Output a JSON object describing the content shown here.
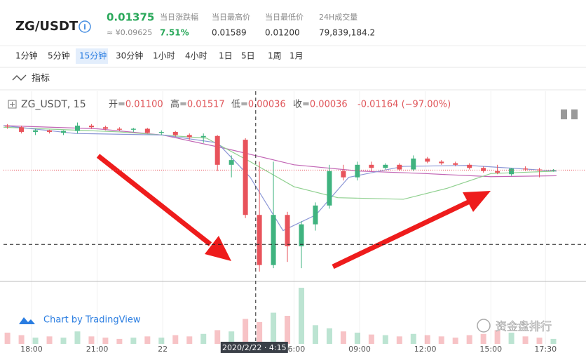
{
  "header": {
    "symbol": "ZG/USDT",
    "price": "0.01375",
    "price_cny": "≈ ¥0.09625",
    "stats": [
      {
        "label": "当日涨跌幅",
        "value": "7.51%"
      },
      {
        "label": "当日最高价",
        "value": "0.01589"
      },
      {
        "label": "当日最低价",
        "value": "0.01200"
      },
      {
        "label": "24H成交量",
        "value": "79,839,184.2"
      }
    ]
  },
  "intervals": [
    "1分钟",
    "5分钟",
    "15分钟",
    "30分钟",
    "1小时",
    "4小时",
    "1日",
    "5日",
    "1周",
    "1月"
  ],
  "active_interval": 2,
  "indicators_button": "指标",
  "legend": {
    "symbol": "ZG_USDT, 15",
    "items": [
      {
        "label": "开=",
        "value": "0.01100"
      },
      {
        "label": "高=",
        "value": "0.01517"
      },
      {
        "label": "低=",
        "value": "0.00036"
      },
      {
        "label": "收=",
        "value": "0.00036"
      }
    ],
    "change": "-0.01164 (−97.00%)"
  },
  "attribution": "Chart by TradingView",
  "watermark": "资金盘排行",
  "chart_data": {
    "type": "candlestick",
    "x": [
      -1.1,
      -0.46,
      0.18,
      0.82,
      1.46,
      2.1,
      2.74,
      3.38,
      4.02,
      4.66,
      5.3,
      5.94,
      6.58,
      7.22,
      7.86,
      8.5,
      9.14,
      9.78,
      10.42,
      11.06,
      11.7,
      12.34,
      12.98,
      13.62,
      14.26,
      14.9,
      15.54,
      16.18,
      16.82,
      17.46,
      18.1,
      18.74,
      19.38,
      20.02,
      20.66,
      21.3,
      21.94,
      22.58,
      23.22,
      23.86
    ],
    "open": [
      0.01585,
      0.0158,
      0.01565,
      0.0157,
      0.01562,
      0.01568,
      0.01585,
      0.0158,
      0.01575,
      0.01572,
      0.01575,
      0.01562,
      0.01565,
      0.01555,
      0.01548,
      0.01552,
      0.0146,
      0.0154,
      0.013,
      0.0114,
      0.013,
      0.012,
      0.0127,
      0.0133,
      0.0144,
      0.0142,
      0.0146,
      0.0145,
      0.0146,
      0.01445,
      0.0148,
      0.0147,
      0.01465,
      0.0146,
      0.0145,
      0.0144,
      0.0143,
      0.01448,
      0.01445,
      0.01442
    ],
    "high": [
      0.0159,
      0.01585,
      0.01575,
      0.01572,
      0.0157,
      0.01595,
      0.0159,
      0.01585,
      0.0158,
      0.01578,
      0.01578,
      0.0157,
      0.01568,
      0.0156,
      0.0156,
      0.01555,
      0.0149,
      0.01545,
      0.0147,
      0.0147,
      0.0131,
      0.0128,
      0.0134,
      0.0146,
      0.0146,
      0.0147,
      0.0147,
      0.01465,
      0.01465,
      0.0149,
      0.01485,
      0.01475,
      0.0147,
      0.01465,
      0.01455,
      0.0146,
      0.0145,
      0.01455,
      0.0145,
      0.01446
    ],
    "low": [
      0.01575,
      0.0156,
      0.01555,
      0.0156,
      0.01555,
      0.0156,
      0.01575,
      0.0157,
      0.01568,
      0.01565,
      0.0156,
      0.01555,
      0.0155,
      0.0154,
      0.0153,
      0.0144,
      0.0142,
      0.0129,
      0.01119,
      0.0113,
      0.0115,
      0.0113,
      0.0125,
      0.0132,
      0.0141,
      0.0141,
      0.0144,
      0.01445,
      0.0144,
      0.0144,
      0.01465,
      0.0146,
      0.01455,
      0.01445,
      0.01435,
      0.0143,
      0.01425,
      0.0144,
      0.0142,
      0.01438
    ],
    "close": [
      0.01582,
      0.01565,
      0.0157,
      0.01565,
      0.01568,
      0.01585,
      0.0158,
      0.01575,
      0.01572,
      0.01575,
      0.01562,
      0.01565,
      0.01555,
      0.01548,
      0.01552,
      0.0146,
      0.01475,
      0.013,
      0.0114,
      0.013,
      0.012,
      0.0127,
      0.0133,
      0.0144,
      0.0142,
      0.0146,
      0.0145,
      0.0146,
      0.01445,
      0.0148,
      0.0147,
      0.01465,
      0.0146,
      0.0145,
      0.0144,
      0.01435,
      0.01448,
      0.01445,
      0.01442,
      0.01443
    ],
    "volume": [
      18,
      14,
      10,
      12,
      10,
      20,
      12,
      10,
      8,
      10,
      12,
      10,
      14,
      12,
      16,
      22,
      20,
      40,
      35,
      50,
      45,
      90,
      30,
      25,
      20,
      18,
      15,
      14,
      12,
      16,
      14,
      12,
      10,
      14,
      16,
      22,
      18,
      12,
      10,
      8
    ],
    "up_color": "#3fb37f",
    "down_color": "#e8535b",
    "lines": [
      {
        "color": "#c266b5",
        "x": [
          -1.28,
          3,
          6,
          9,
          12,
          15,
          18,
          21,
          24
        ],
        "values": [
          0.01585,
          0.01575,
          0.01555,
          0.0151,
          0.0146,
          0.0144,
          0.01432,
          0.01422,
          0.01425
        ]
      },
      {
        "color": "#8fd08f",
        "x": [
          -1.28,
          4,
          8,
          10,
          12,
          14,
          17,
          19,
          21,
          24
        ],
        "values": [
          0.0158,
          0.01565,
          0.01545,
          0.0147,
          0.0139,
          0.01355,
          0.0135,
          0.01385,
          0.01432,
          0.0144
        ]
      },
      {
        "color": "#8c97d6",
        "x": [
          -1.28,
          2,
          6,
          8.5,
          10,
          11.5,
          13,
          14.5,
          17,
          20,
          24
        ],
        "values": [
          0.01585,
          0.0156,
          0.01555,
          0.0153,
          0.0142,
          0.0125,
          0.013,
          0.0142,
          0.01455,
          0.01458,
          0.0144
        ]
      }
    ],
    "xlim": [
      -1.28,
      25.35
    ],
    "ylim": [
      0.0109,
      0.0165
    ],
    "xticks": [
      {
        "value": 0,
        "label": "18:00"
      },
      {
        "value": 3,
        "label": "21:00"
      },
      {
        "value": 6,
        "label": "22"
      },
      {
        "value": 12,
        "label": "06:00"
      },
      {
        "value": 15,
        "label": "09:00"
      },
      {
        "value": 18,
        "label": "12:00"
      },
      {
        "value": 21,
        "label": "15:00"
      },
      {
        "value": 23.5,
        "label": "17:30"
      }
    ],
    "crosshair": {
      "x": 10.25,
      "y": 0.01206,
      "label": "2020/2/22 · 4:15"
    },
    "last_price": 0.01443
  }
}
